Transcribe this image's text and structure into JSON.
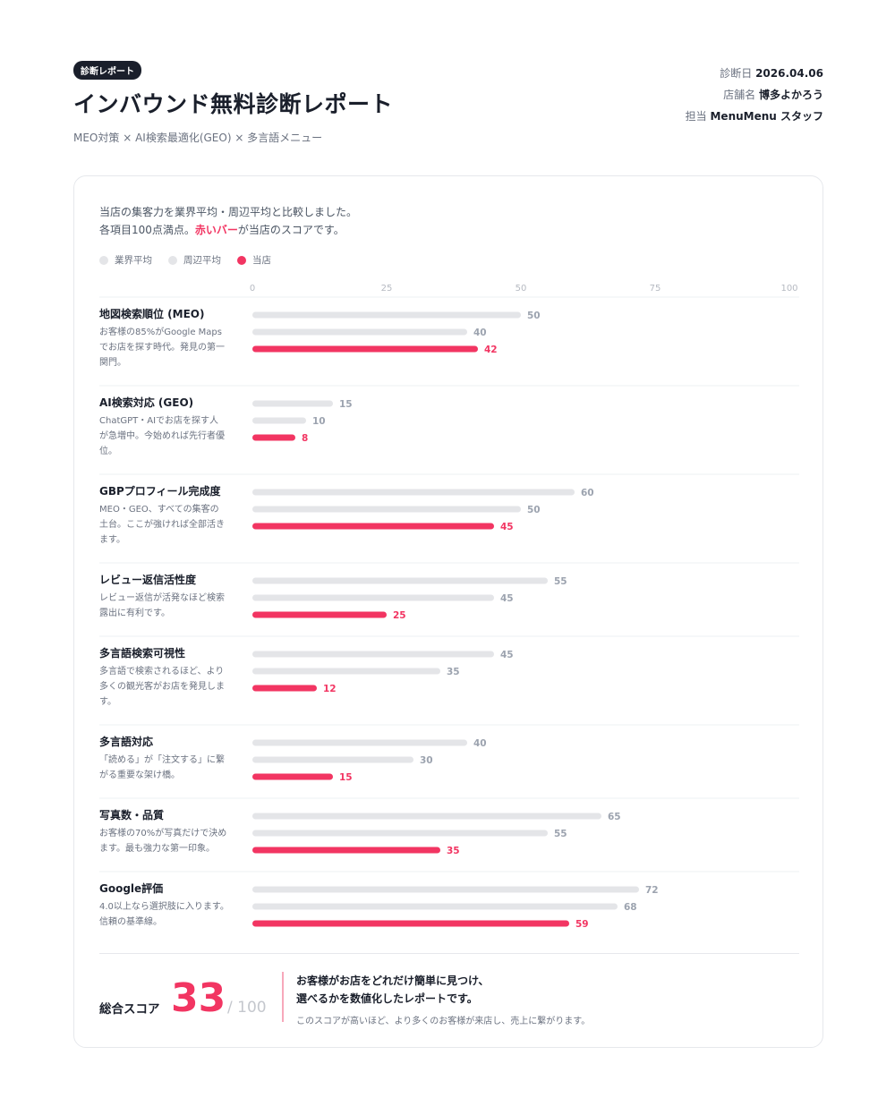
{
  "header": {
    "badge": "診断レポート",
    "title": "インバウンド無料診断レポート",
    "subtitle": "MEO対策 × AI検索最適化(GEO) × 多言語メニュー",
    "meta": [
      {
        "key": "診断日",
        "value": "2026.04.06"
      },
      {
        "key": "店舗名",
        "value": "博多よかろう"
      },
      {
        "key": "担当",
        "value": "MenuMenu スタッフ"
      }
    ]
  },
  "intro": {
    "line1": "当店の集客力を業界平均・周辺平均と比較しました。",
    "line2_pre": "各項目100点満点。",
    "line2_highlight": "赤いバー",
    "line2_post": "が当店のスコアです。"
  },
  "colors": {
    "accent": "#f23562",
    "bar_gray": "#e4e5e8",
    "legend_gray": "#e4e5e8"
  },
  "chart_data": {
    "type": "bar",
    "orientation": "horizontal",
    "xlim": [
      0,
      100
    ],
    "ticks": [
      0,
      25,
      50,
      75,
      100
    ],
    "series": [
      {
        "name": "業界平均",
        "color": "#e4e5e8"
      },
      {
        "name": "周辺平均",
        "color": "#e4e5e8"
      },
      {
        "name": "当店",
        "color": "#f23562"
      }
    ],
    "categories": [
      {
        "title": "地図検索順位 (MEO)",
        "desc": [
          "お客様の85%がGoogle Maps",
          "でお店を探す時代。発見の第一",
          "関門。"
        ],
        "values": [
          50,
          40,
          42
        ]
      },
      {
        "title": "AI検索対応 (GEO)",
        "desc": [
          "ChatGPT・AIでお店を探す人",
          "が急増中。今始めれば先行者優",
          "位。"
        ],
        "values": [
          15,
          10,
          8
        ]
      },
      {
        "title": "GBPプロフィール完成度",
        "desc": [
          "MEO・GEO、すべての集客の",
          "土台。ここが強ければ全部活き",
          "ます。"
        ],
        "values": [
          60,
          50,
          45
        ]
      },
      {
        "title": "レビュー返信活性度",
        "desc": [
          "レビュー返信が活発なほど検索",
          "露出に有利です。"
        ],
        "values": [
          55,
          45,
          25
        ]
      },
      {
        "title": "多言語検索可視性",
        "desc": [
          "多言語で検索されるほど、より",
          "多くの観光客がお店を発見しま",
          "す。"
        ],
        "values": [
          45,
          35,
          12
        ]
      },
      {
        "title": "多言語対応",
        "desc": [
          "「読める」が「注文する」に繋",
          "がる重要な架け橋。"
        ],
        "values": [
          40,
          30,
          15
        ]
      },
      {
        "title": "写真数・品質",
        "desc": [
          "お客様の70%が写真だけで決め",
          "ます。最も強力な第一印象。"
        ],
        "values": [
          65,
          55,
          35
        ]
      },
      {
        "title": "Google評価",
        "desc": [
          "4.0以上なら選択肢に入ります。",
          "信頼の基準線。"
        ],
        "values": [
          72,
          68,
          59
        ]
      }
    ]
  },
  "score": {
    "label": "総合スコア",
    "value": "33",
    "max": "/ 100",
    "line1": "お客様がお店をどれだけ簡単に見つけ、",
    "line2": "選べるかを数値化したレポートです。",
    "note": "このスコアが高いほど、より多くのお客様が来店し、売上に繋がります。"
  }
}
